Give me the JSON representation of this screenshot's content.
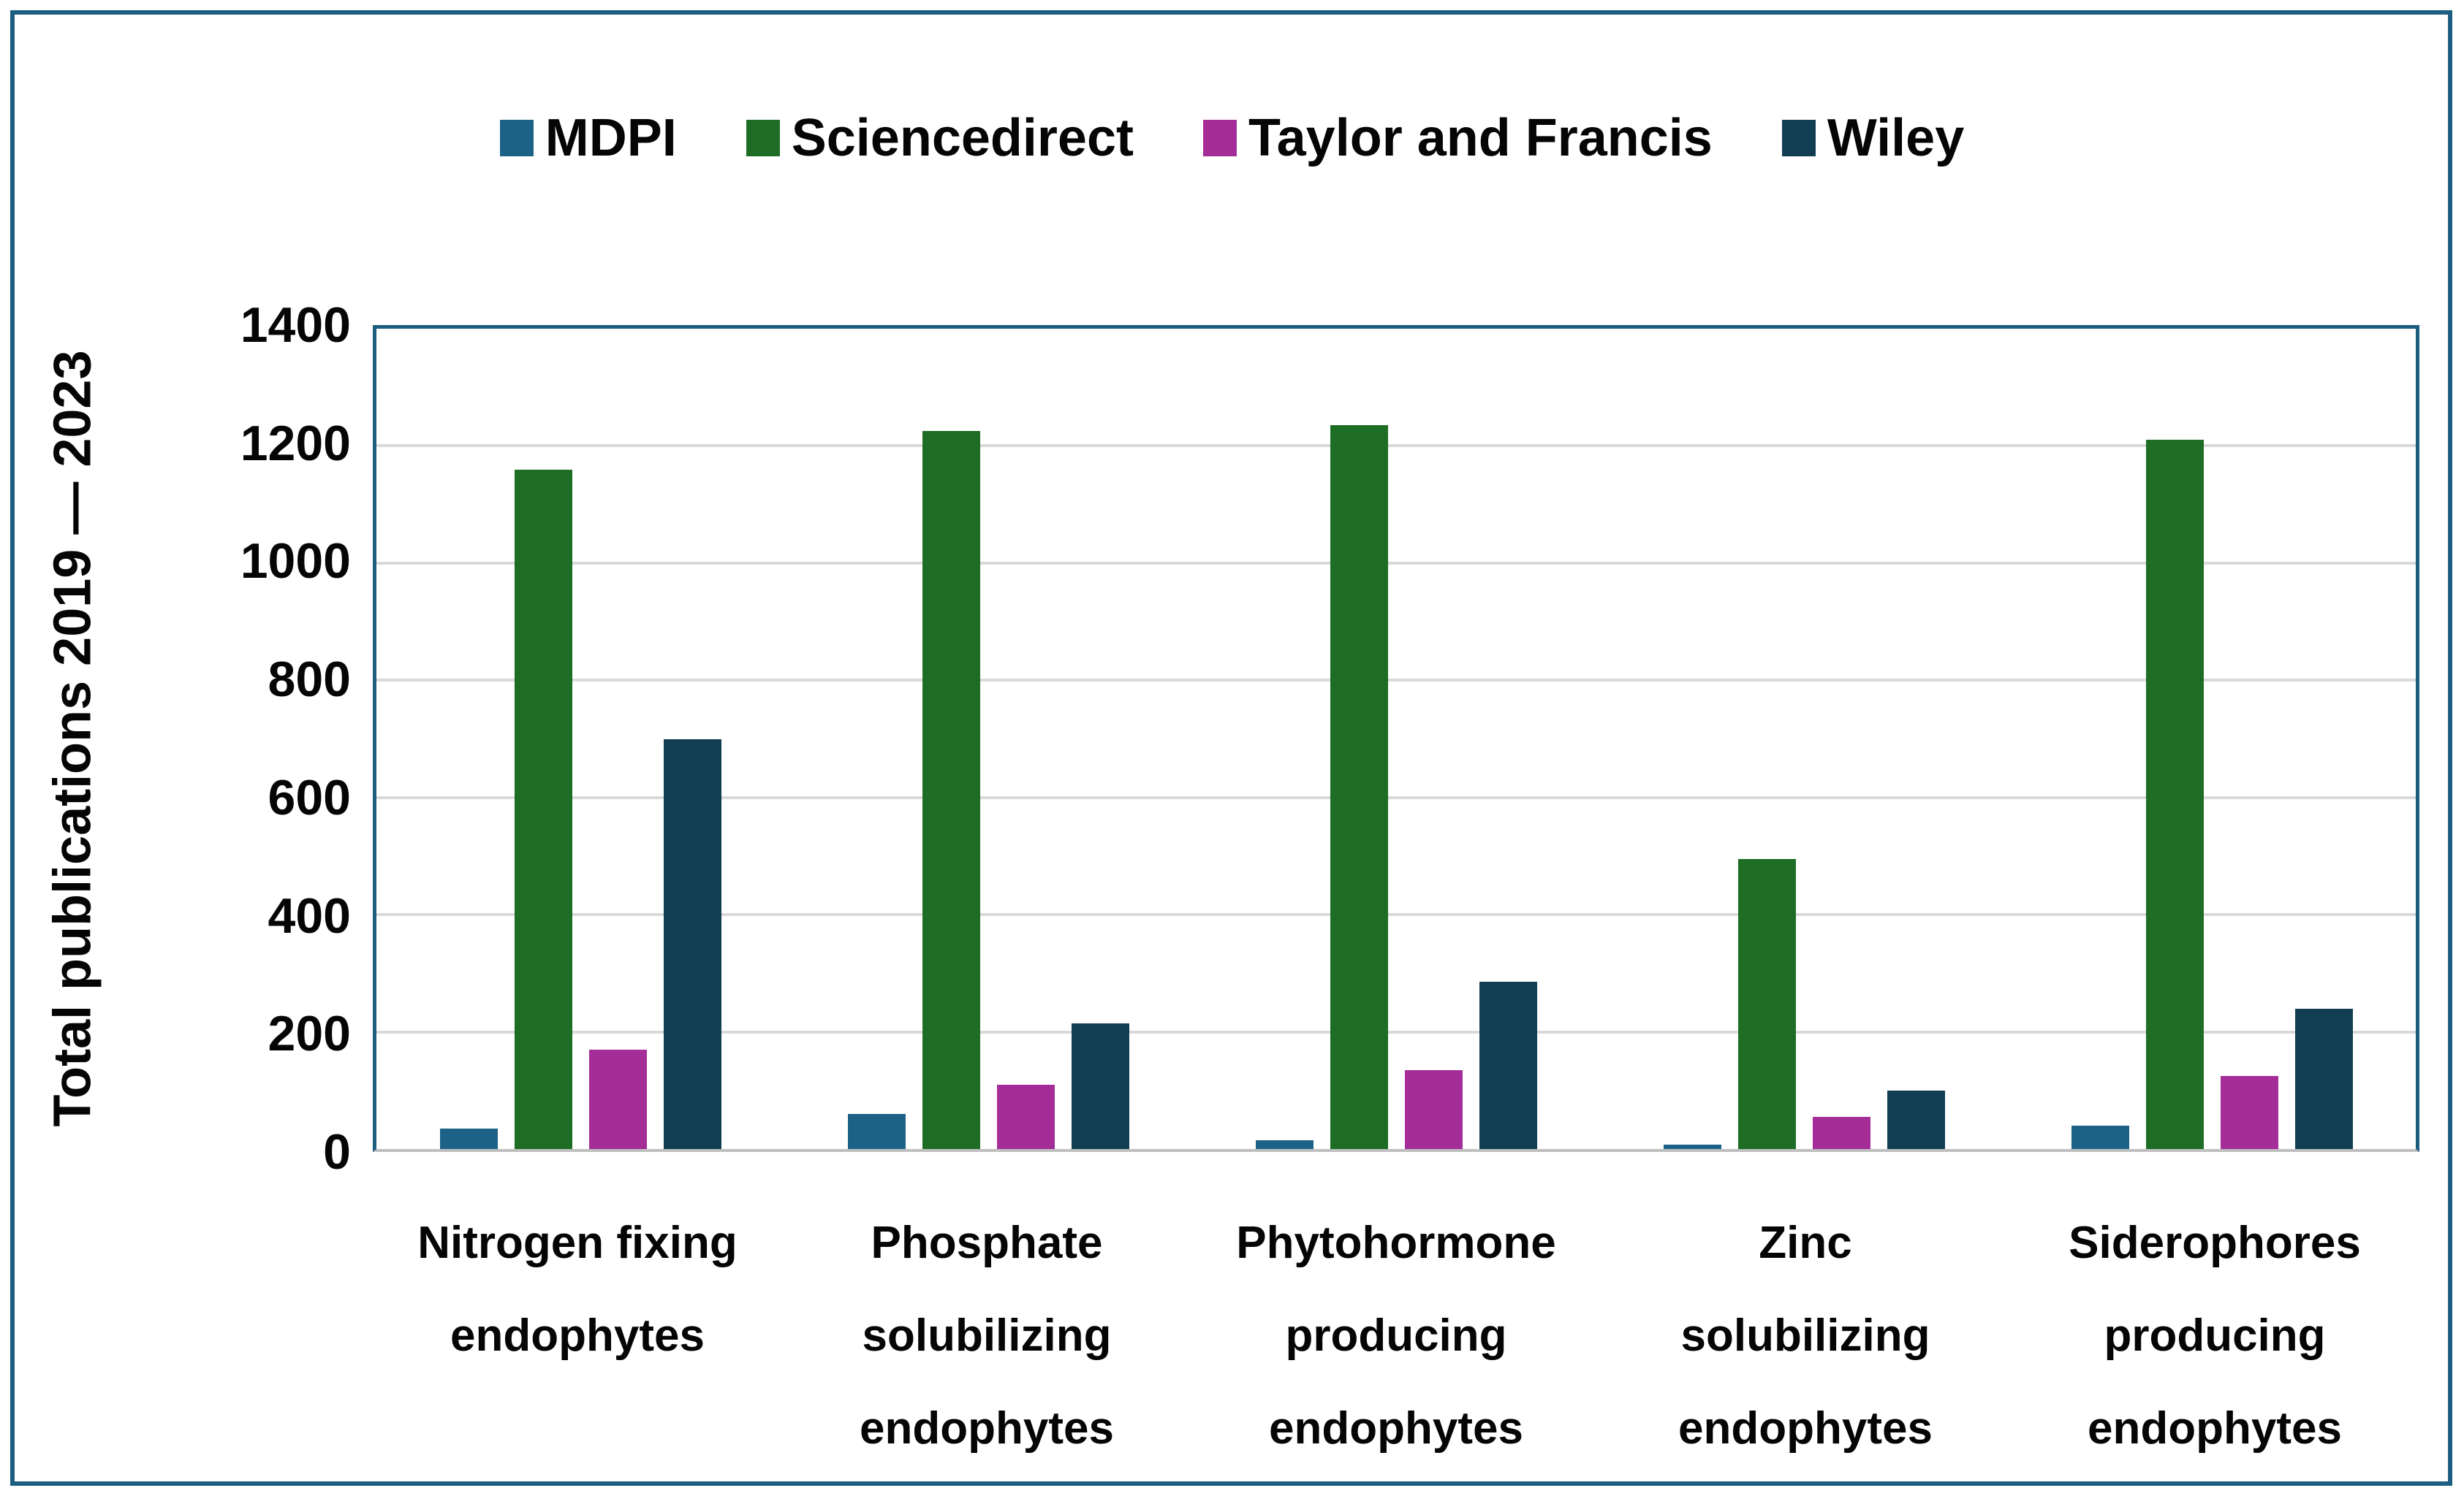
{
  "colors": {
    "figure_border": "#1D5E80",
    "plot_border": "#1D5E80",
    "gridline": "#D9D9D9",
    "axis_line": "#BFBFBF",
    "text": "#050505",
    "background": "#FFFFFF"
  },
  "chart_data": {
    "type": "bar",
    "title": "",
    "xlabel": "",
    "ylabel": "Total publications 2019 — 2023",
    "ylim": [
      0,
      1400
    ],
    "yticks": [
      0,
      200,
      400,
      600,
      800,
      1000,
      1200,
      1400
    ],
    "grid": "horizontal",
    "legend_position": "top",
    "categories": [
      "Nitrogen fixing\nendophytes",
      "Phosphate\nsolubilizing\nendophytes",
      "Phytohormone\nproducing\nendophytes",
      "Zinc\nsolubilizing\nendophytes",
      "Siderophores\nproducing\nendophytes"
    ],
    "series": [
      {
        "name": "MDPI",
        "color": "#1C6287",
        "values": [
          35,
          60,
          15,
          8,
          40
        ]
      },
      {
        "name": "Sciencedirect",
        "color": "#1E6D24",
        "values": [
          1160,
          1225,
          1235,
          495,
          1210
        ]
      },
      {
        "name": "Taylor and Francis",
        "color": "#A52D98",
        "values": [
          170,
          110,
          135,
          55,
          125
        ]
      },
      {
        "name": "Wiley",
        "color": "#123E53",
        "values": [
          700,
          215,
          285,
          100,
          240
        ]
      }
    ]
  }
}
